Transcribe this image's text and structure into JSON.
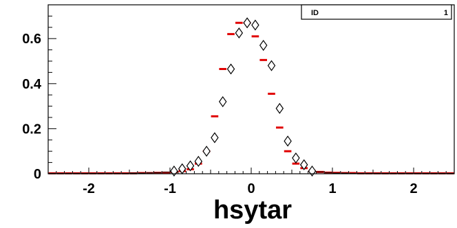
{
  "stats_box": {
    "label": "ID",
    "value": "1"
  },
  "chart_data": {
    "type": "scatter",
    "xlabel": "hsytar",
    "ylabel": "",
    "title": "",
    "xlim": [
      -2.5,
      2.5
    ],
    "ylim": [
      0,
      0.75
    ],
    "x_ticks": [
      -2,
      -1,
      0,
      1,
      2
    ],
    "x_tick_labels": [
      "-2",
      "-1",
      "0",
      "1",
      "2"
    ],
    "y_ticks": [
      0,
      0.2,
      0.4,
      0.6
    ],
    "y_tick_labels": [
      "0",
      "0.2",
      "0.4",
      "0.6"
    ],
    "grid": false,
    "bin_width": 0.1,
    "series": [
      {
        "marker": "diamond",
        "color": "#000000",
        "x": [
          -2.45,
          -2.35,
          -2.25,
          -2.15,
          -2.05,
          -1.95,
          -1.85,
          -1.75,
          -1.65,
          -1.55,
          -1.45,
          -1.35,
          -1.25,
          -1.15,
          -1.05,
          -0.95,
          -0.85,
          -0.75,
          -0.65,
          -0.55,
          -0.45,
          -0.35,
          -0.25,
          -0.15,
          -0.05,
          0.05,
          0.15,
          0.25,
          0.35,
          0.45,
          0.55,
          0.65,
          0.75,
          0.85,
          0.95,
          1.05,
          1.15,
          1.25,
          1.35,
          1.45,
          1.55,
          1.65,
          1.75,
          1.85,
          1.95,
          2.05,
          2.15,
          2.25,
          2.35,
          2.45
        ],
        "y": [
          0.002,
          0.002,
          0.002,
          0.002,
          0.002,
          0.002,
          0.002,
          0.002,
          0.002,
          0.002,
          0.003,
          0.003,
          0.004,
          0.005,
          0.007,
          0.012,
          0.022,
          0.035,
          0.055,
          0.1,
          0.16,
          0.32,
          0.465,
          0.625,
          0.67,
          0.66,
          0.57,
          0.48,
          0.29,
          0.145,
          0.07,
          0.04,
          0.012,
          0.008,
          0.005,
          0.003,
          0.003,
          0.002,
          0.002,
          0.002,
          0.002,
          0.002,
          0.002,
          0.002,
          0.002,
          0.002,
          0.002,
          0.002,
          0.002,
          0.002
        ]
      },
      {
        "marker": "hline",
        "color": "#e00000",
        "x": [
          -2.45,
          -2.35,
          -2.25,
          -2.15,
          -2.05,
          -1.95,
          -1.85,
          -1.75,
          -1.65,
          -1.55,
          -1.45,
          -1.35,
          -1.25,
          -1.15,
          -1.05,
          -0.95,
          -0.85,
          -0.75,
          -0.65,
          -0.55,
          -0.45,
          -0.35,
          -0.25,
          -0.15,
          -0.05,
          0.05,
          0.15,
          0.25,
          0.35,
          0.45,
          0.55,
          0.65,
          0.75,
          0.85,
          0.95,
          1.05,
          1.15,
          1.25,
          1.35,
          1.45,
          1.55,
          1.65,
          1.75,
          1.85,
          1.95,
          2.05,
          2.15,
          2.25,
          2.35,
          2.45
        ],
        "y": [
          0.002,
          0.002,
          0.002,
          0.002,
          0.002,
          0.002,
          0.002,
          0.002,
          0.002,
          0.002,
          0.002,
          0.003,
          0.003,
          0.004,
          0.005,
          0.008,
          0.012,
          0.02,
          0.045,
          0.1,
          0.255,
          0.465,
          0.62,
          0.67,
          0.67,
          0.61,
          0.505,
          0.355,
          0.205,
          0.1,
          0.045,
          0.025,
          0.012,
          0.008,
          0.005,
          0.004,
          0.003,
          0.003,
          0.002,
          0.002,
          0.002,
          0.002,
          0.002,
          0.002,
          0.002,
          0.002,
          0.002,
          0.002,
          0.002,
          0.002
        ]
      }
    ]
  }
}
